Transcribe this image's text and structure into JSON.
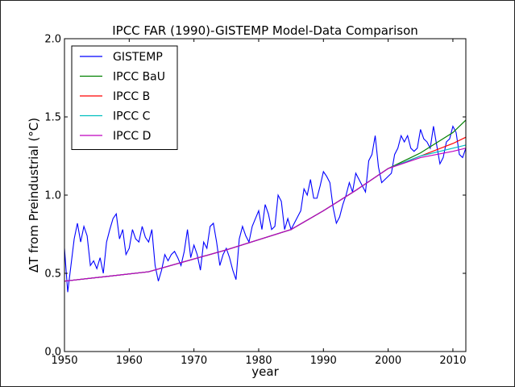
{
  "chart_data": {
    "type": "line",
    "title": "IPCC FAR (1990)-GISTEMP Model-Data Comparison",
    "xlabel": "year",
    "ylabel": "ΔT from Preindustrial (°C)",
    "xlim": [
      1950,
      2012
    ],
    "ylim": [
      0.0,
      2.0
    ],
    "xticks": [
      1950,
      1960,
      1970,
      1980,
      1990,
      2000,
      2010
    ],
    "xtick_labels": [
      "1950",
      "1960",
      "1970",
      "1980",
      "1990",
      "2000",
      "2010"
    ],
    "yticks": [
      0.0,
      0.5,
      1.0,
      1.5,
      2.0
    ],
    "ytick_labels": [
      "0.0",
      "0.5",
      "1.0",
      "1.5",
      "2.0"
    ],
    "grid": false,
    "legend_position": "top-left",
    "series": [
      {
        "name": "GISTEMP",
        "color": "#0000ff",
        "x": [
          1950.0,
          1950.5,
          1951.0,
          1951.5,
          1952.0,
          1952.5,
          1953.0,
          1953.5,
          1954.0,
          1954.5,
          1955.0,
          1955.5,
          1956.0,
          1956.5,
          1957.0,
          1957.5,
          1958.0,
          1958.5,
          1959.0,
          1959.5,
          1960.0,
          1960.5,
          1961.0,
          1961.5,
          1962.0,
          1962.5,
          1963.0,
          1963.5,
          1964.0,
          1964.5,
          1965.0,
          1965.5,
          1966.0,
          1966.5,
          1967.0,
          1967.5,
          1968.0,
          1968.5,
          1969.0,
          1969.5,
          1970.0,
          1970.5,
          1971.0,
          1971.5,
          1972.0,
          1972.5,
          1973.0,
          1973.5,
          1974.0,
          1974.5,
          1975.0,
          1975.5,
          1976.0,
          1976.5,
          1977.0,
          1977.5,
          1978.0,
          1978.5,
          1979.0,
          1979.5,
          1980.0,
          1980.5,
          1981.0,
          1981.5,
          1982.0,
          1982.5,
          1983.0,
          1983.5,
          1984.0,
          1984.5,
          1985.0,
          1985.5,
          1986.0,
          1986.5,
          1987.0,
          1987.5,
          1988.0,
          1988.5,
          1989.0,
          1989.5,
          1990.0,
          1990.5,
          1991.0,
          1991.5,
          1992.0,
          1992.5,
          1993.0,
          1993.5,
          1994.0,
          1994.5,
          1995.0,
          1995.5,
          1996.0,
          1996.5,
          1997.0,
          1997.5,
          1998.0,
          1998.5,
          1999.0,
          1999.5,
          2000.0,
          2000.5,
          2001.0,
          2001.5,
          2002.0,
          2002.5,
          2003.0,
          2003.5,
          2004.0,
          2004.5,
          2005.0,
          2005.5,
          2006.0,
          2006.5,
          2007.0,
          2007.5,
          2008.0,
          2008.5,
          2009.0,
          2009.5,
          2010.0,
          2010.5,
          2011.0,
          2011.5,
          2012.0
        ],
        "y": [
          0.66,
          0.38,
          0.55,
          0.72,
          0.82,
          0.7,
          0.8,
          0.74,
          0.55,
          0.58,
          0.53,
          0.6,
          0.5,
          0.7,
          0.78,
          0.85,
          0.88,
          0.72,
          0.78,
          0.62,
          0.66,
          0.78,
          0.72,
          0.7,
          0.8,
          0.73,
          0.7,
          0.78,
          0.55,
          0.45,
          0.52,
          0.62,
          0.58,
          0.62,
          0.64,
          0.6,
          0.55,
          0.64,
          0.78,
          0.6,
          0.68,
          0.62,
          0.52,
          0.7,
          0.66,
          0.8,
          0.82,
          0.7,
          0.55,
          0.62,
          0.66,
          0.6,
          0.52,
          0.46,
          0.72,
          0.8,
          0.74,
          0.7,
          0.8,
          0.85,
          0.9,
          0.78,
          0.94,
          0.88,
          0.78,
          0.8,
          1.0,
          0.96,
          0.78,
          0.85,
          0.78,
          0.82,
          0.86,
          0.9,
          1.04,
          1.0,
          1.1,
          0.98,
          0.98,
          1.06,
          1.15,
          1.12,
          1.08,
          0.92,
          0.82,
          0.86,
          0.94,
          1.0,
          1.08,
          1.02,
          1.14,
          1.1,
          1.06,
          1.02,
          1.22,
          1.26,
          1.38,
          1.18,
          1.08,
          1.1,
          1.12,
          1.14,
          1.26,
          1.3,
          1.38,
          1.34,
          1.38,
          1.3,
          1.28,
          1.3,
          1.42,
          1.36,
          1.34,
          1.3,
          1.44,
          1.32,
          1.2,
          1.24,
          1.34,
          1.36,
          1.44,
          1.4,
          1.26,
          1.24,
          1.3
        ]
      },
      {
        "name": "IPCC BaU",
        "color": "#008000",
        "x": [
          1950,
          1963,
          1975,
          1985,
          1990,
          1995,
          2000,
          2005,
          2010,
          2012
        ],
        "y": [
          0.45,
          0.51,
          0.65,
          0.78,
          0.9,
          1.03,
          1.17,
          1.27,
          1.4,
          1.48
        ]
      },
      {
        "name": "IPCC B",
        "color": "#ff0000",
        "x": [
          1950,
          1963,
          1975,
          1985,
          1990,
          1995,
          2000,
          2005,
          2010,
          2012
        ],
        "y": [
          0.45,
          0.51,
          0.65,
          0.78,
          0.9,
          1.03,
          1.17,
          1.25,
          1.33,
          1.37
        ]
      },
      {
        "name": "IPCC C",
        "color": "#00bfbf",
        "x": [
          1950,
          1963,
          1975,
          1985,
          1990,
          1995,
          2000,
          2005,
          2010,
          2012
        ],
        "y": [
          0.45,
          0.51,
          0.65,
          0.78,
          0.9,
          1.03,
          1.17,
          1.25,
          1.3,
          1.32
        ]
      },
      {
        "name": "IPCC D",
        "color": "#bf00bf",
        "x": [
          1950,
          1963,
          1975,
          1985,
          1990,
          1995,
          2000,
          2005,
          2010,
          2012
        ],
        "y": [
          0.45,
          0.51,
          0.65,
          0.78,
          0.9,
          1.03,
          1.17,
          1.24,
          1.28,
          1.3
        ]
      }
    ]
  }
}
